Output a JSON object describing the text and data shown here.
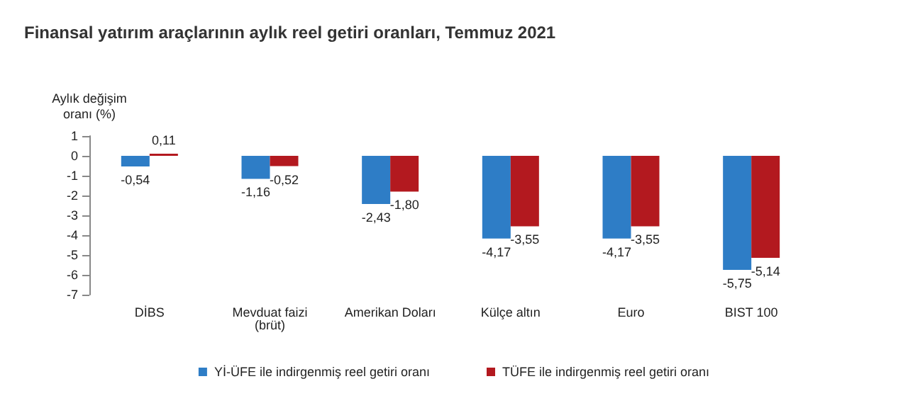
{
  "chart_data": {
    "type": "bar",
    "title": "Finansal yatırım araçlarının aylık reel getiri oranları, Temmuz 2021",
    "ylabel": "Aylık değişim\noranı (%)",
    "categories": [
      "DİBS",
      "Mevduat faizi\n(brüt)",
      "Amerikan Doları",
      "Külçe altın",
      "Euro",
      "BIST 100"
    ],
    "series": [
      {
        "name": "Yİ-ÜFE ile indirgenmiş reel getiri oranı",
        "color": "#2e7dc6",
        "values": [
          -0.54,
          -1.16,
          -2.43,
          -4.17,
          -4.17,
          -5.75
        ],
        "value_labels": [
          "-0,54",
          "-1,16",
          "-2,43",
          "-4,17",
          "-4,17",
          "-5,75"
        ]
      },
      {
        "name": "TÜFE ile indirgenmiş reel getiri oranı",
        "color": "#b3191f",
        "values": [
          0.11,
          -0.52,
          -1.8,
          -3.55,
          -3.55,
          -5.14
        ],
        "value_labels": [
          "0,11",
          "-0,52",
          "-1,80",
          "-3,55",
          "-3,55",
          "-5,14"
        ]
      }
    ],
    "ylim": [
      -7,
      1
    ],
    "yticks": [
      -7,
      -6,
      -5,
      -4,
      -3,
      -2,
      -1,
      0,
      1
    ],
    "grid": false,
    "legend": "bottom"
  }
}
